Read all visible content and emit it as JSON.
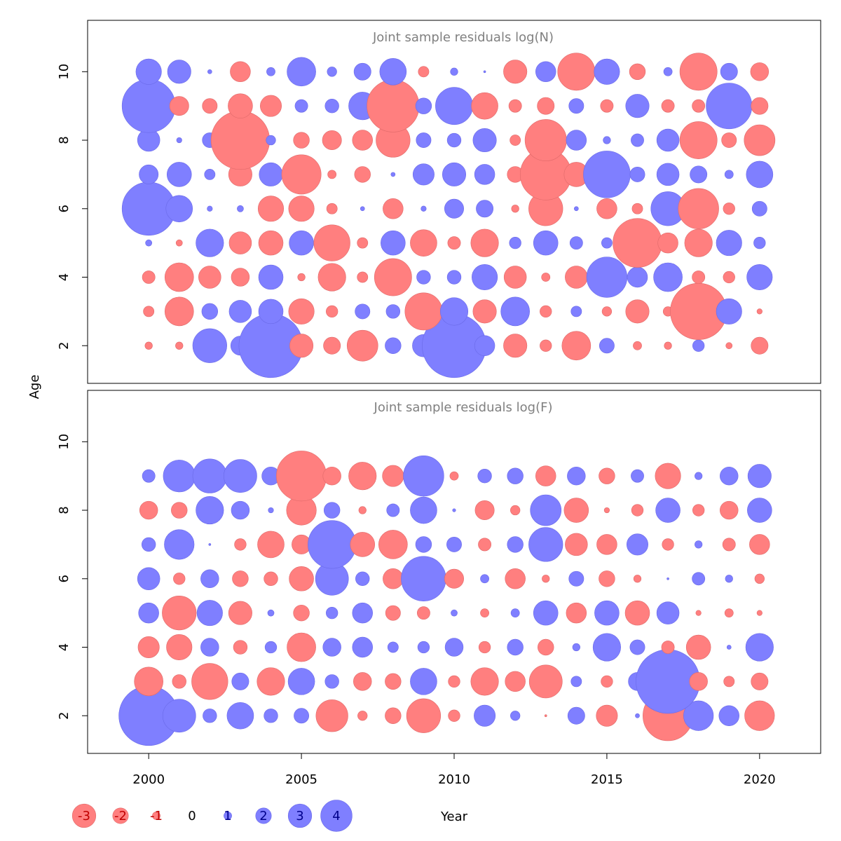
{
  "chart_data": {
    "type": "scatter",
    "subtype": "bubble",
    "xlabel": "Year",
    "ylabel": "Age",
    "x_ticks": [
      2000,
      2005,
      2010,
      2015,
      2020
    ],
    "xlim": [
      1998,
      2022
    ],
    "years": [
      2000,
      2001,
      2002,
      2003,
      2004,
      2005,
      2006,
      2007,
      2008,
      2009,
      2010,
      2011,
      2012,
      2013,
      2014,
      2015,
      2016,
      2017,
      2018,
      2019,
      2020
    ],
    "colors": {
      "negative": "#ff7f7f",
      "positive": "#7f7fff",
      "title": "#808080"
    },
    "legend": {
      "position": "bottom-left",
      "entries": [
        {
          "label": "-3",
          "value": -3
        },
        {
          "label": "-2",
          "value": -2
        },
        {
          "label": "-1",
          "value": -1
        },
        {
          "label": "0",
          "value": 0
        },
        {
          "label": "1",
          "value": 1
        },
        {
          "label": "2",
          "value": 2
        },
        {
          "label": "3",
          "value": 3
        },
        {
          "label": "4",
          "value": 4
        }
      ]
    },
    "panels": [
      {
        "title": "Joint sample residuals log(N)",
        "y_ticks": [
          2,
          4,
          6,
          8,
          10
        ],
        "ylim": [
          0.9,
          11.5
        ],
        "ages": [
          2,
          3,
          4,
          5,
          6,
          7,
          8,
          9,
          10
        ],
        "residuals": [
          [
            -0.35,
            -0.35,
            1.6,
            0.9,
            3.0,
            -1.1,
            -0.8,
            -1.45,
            0.75,
            1.05,
            3.0,
            0.95,
            -1.1,
            -0.55,
            -1.35,
            0.7,
            -0.4,
            -0.35,
            0.55,
            -0.3,
            -0.8
          ],
          [
            -0.5,
            -1.35,
            0.75,
            1.05,
            1.15,
            -1.2,
            -0.55,
            0.7,
            0.65,
            -1.75,
            1.3,
            -1.1,
            1.35,
            -0.55,
            0.5,
            -0.45,
            -1.1,
            -0.45,
            -2.65,
            1.2,
            -0.25
          ],
          [
            -0.6,
            -1.35,
            -1.05,
            -0.85,
            1.15,
            -0.35,
            -1.3,
            -0.5,
            -1.75,
            0.65,
            0.65,
            1.2,
            -1.05,
            -0.4,
            -1.05,
            1.9,
            0.95,
            1.35,
            -0.6,
            -0.55,
            1.2
          ],
          [
            0.3,
            -0.3,
            1.3,
            -1.05,
            -1.15,
            1.15,
            -1.7,
            -0.5,
            1.15,
            -1.25,
            -0.6,
            -1.3,
            0.55,
            1.15,
            0.6,
            0.5,
            -2.3,
            -0.95,
            -1.3,
            1.2,
            0.55
          ],
          [
            2.5,
            1.25,
            0.25,
            0.3,
            -1.2,
            -1.2,
            -0.5,
            0.2,
            -0.95,
            0.25,
            0.9,
            0.8,
            -0.35,
            -1.6,
            0.2,
            -0.95,
            -0.5,
            1.6,
            -1.9,
            -0.55,
            0.7
          ],
          [
            0.9,
            1.15,
            0.5,
            -1.1,
            1.1,
            -1.85,
            -0.4,
            -0.75,
            0.2,
            1.0,
            1.1,
            0.95,
            -0.75,
            -2.4,
            -1.15,
            2.2,
            0.7,
            1.05,
            0.8,
            0.4,
            1.25
          ],
          [
            1.05,
            0.25,
            0.7,
            -2.75,
            0.45,
            -0.75,
            -0.9,
            -0.95,
            -1.6,
            0.7,
            0.65,
            1.1,
            -0.5,
            -1.95,
            0.95,
            0.35,
            0.6,
            1.05,
            -1.75,
            -0.7,
            -1.45
          ],
          [
            2.5,
            -0.9,
            -0.7,
            -1.15,
            -1.0,
            0.6,
            0.65,
            1.3,
            -2.45,
            0.75,
            1.75,
            -1.25,
            -0.6,
            -0.8,
            0.7,
            -0.6,
            1.1,
            -0.6,
            -0.6,
            2.15,
            -0.8
          ],
          [
            1.2,
            1.1,
            0.2,
            -0.95,
            0.4,
            1.35,
            0.45,
            0.8,
            1.25,
            -0.5,
            0.35,
            0.1,
            -1.1,
            0.95,
            -1.75,
            1.2,
            -0.75,
            0.4,
            -1.75,
            0.8,
            -0.85
          ]
        ]
      },
      {
        "title": "Joint sample residuals log(F)",
        "y_ticks": [
          2,
          4,
          6,
          8,
          10
        ],
        "ylim": [
          0.9,
          11.5
        ],
        "ages": [
          2,
          3,
          4,
          5,
          6,
          7,
          8,
          9
        ],
        "residuals": [
          [
            2.8,
            1.55,
            0.65,
            1.25,
            0.65,
            0.7,
            -1.5,
            -0.45,
            -0.75,
            -1.6,
            -0.55,
            1.0,
            0.45,
            -0.1,
            0.8,
            -1.0,
            0.2,
            -2.35,
            1.4,
            0.95,
            -1.4
          ],
          [
            -1.35,
            -0.65,
            -1.7,
            0.8,
            -1.3,
            1.25,
            0.65,
            -0.85,
            -0.75,
            1.25,
            -0.55,
            -1.3,
            -0.95,
            -1.55,
            0.5,
            -0.55,
            0.85,
            3.0,
            -0.85,
            -0.5,
            -0.8
          ],
          [
            -1.0,
            -1.2,
            0.85,
            -0.65,
            0.55,
            -1.35,
            0.85,
            0.95,
            0.5,
            0.55,
            0.85,
            -0.55,
            0.75,
            -0.75,
            0.35,
            1.3,
            0.7,
            -0.6,
            -1.15,
            0.2,
            1.3
          ],
          [
            0.95,
            -1.6,
            1.2,
            -1.1,
            0.3,
            -0.75,
            0.55,
            0.95,
            -0.7,
            -0.6,
            0.3,
            -0.4,
            0.4,
            1.15,
            -0.95,
            1.15,
            -1.15,
            1.05,
            -0.25,
            -0.4,
            -0.25
          ],
          [
            1.05,
            -0.55,
            0.85,
            -0.75,
            -0.65,
            -1.15,
            1.55,
            0.65,
            -0.95,
            2.1,
            -0.9,
            0.4,
            -0.95,
            -0.35,
            0.7,
            -0.75,
            -0.35,
            0.1,
            0.6,
            0.35,
            -0.45
          ],
          [
            0.65,
            1.4,
            0.1,
            -0.55,
            -1.25,
            -0.9,
            2.25,
            -1.15,
            -1.35,
            0.75,
            0.7,
            -0.6,
            0.75,
            1.6,
            -1.05,
            -0.95,
            1.0,
            -0.55,
            0.35,
            -0.6,
            -0.95
          ],
          [
            -0.85,
            -0.75,
            1.3,
            0.85,
            0.25,
            -1.4,
            0.75,
            -0.35,
            0.6,
            1.25,
            0.15,
            -0.9,
            -0.45,
            1.45,
            -1.15,
            -0.25,
            -0.55,
            1.15,
            -0.55,
            -0.85,
            1.15
          ],
          [
            0.6,
            1.5,
            1.6,
            1.55,
            0.85,
            -2.35,
            -0.85,
            -1.3,
            -1.0,
            1.9,
            -0.4,
            0.65,
            0.75,
            -0.95,
            0.85,
            -0.75,
            0.6,
            -1.2,
            0.35,
            0.85,
            1.1
          ]
        ]
      }
    ]
  }
}
